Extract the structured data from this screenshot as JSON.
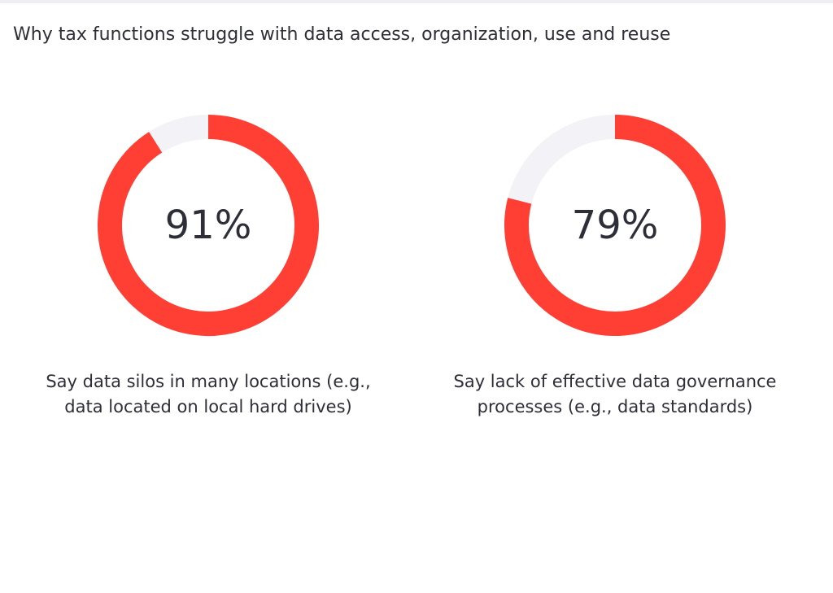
{
  "title": "Why tax functions struggle with data access, organization, use and reuse",
  "colors": {
    "filled": "#ff3f33",
    "remaining": "#f2f2f7",
    "text": "#2e2e38"
  },
  "chart_data": [
    {
      "type": "pie",
      "variant": "donut",
      "value": 91,
      "value_label": "91%",
      "max": 100,
      "caption_lines": [
        "Say data silos in many locations (e.g.,",
        "data located on local hard drives)"
      ]
    },
    {
      "type": "pie",
      "variant": "donut",
      "value": 79,
      "value_label": "79%",
      "max": 100,
      "caption_lines": [
        "Say lack of effective data governance",
        "processes (e.g., data standards)"
      ]
    }
  ]
}
